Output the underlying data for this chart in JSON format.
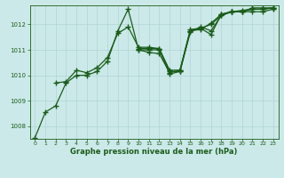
{
  "xlabel": "Graphe pression niveau de la mer (hPa)",
  "xlim": [
    -0.5,
    23.5
  ],
  "ylim": [
    1007.5,
    1012.75
  ],
  "yticks": [
    1008,
    1009,
    1010,
    1011,
    1012
  ],
  "xticks": [
    0,
    1,
    2,
    3,
    4,
    5,
    6,
    7,
    8,
    9,
    10,
    11,
    12,
    13,
    14,
    15,
    16,
    17,
    18,
    19,
    20,
    21,
    22,
    23
  ],
  "bg_color": "#cce9e9",
  "line_color": "#1a5c1a",
  "grid_color": "#b0d4d4",
  "series": [
    {
      "x": [
        0,
        1,
        2,
        3,
        4,
        5,
        6,
        7,
        8,
        9,
        10,
        11,
        12,
        13,
        14,
        15,
        16,
        17,
        18,
        19,
        20,
        21,
        22,
        23
      ],
      "y": [
        1007.55,
        1008.55,
        1008.8,
        1009.7,
        1010.0,
        1010.0,
        1010.15,
        1010.55,
        1011.75,
        1012.6,
        1011.0,
        1010.9,
        1010.85,
        1010.1,
        1010.2,
        1011.75,
        1011.85,
        1011.6,
        1012.4,
        1012.5,
        1012.5,
        1012.5,
        1012.5,
        1012.6
      ]
    },
    {
      "x": [
        2,
        3,
        4,
        5,
        6,
        7,
        8,
        9,
        10,
        11,
        12,
        13,
        14,
        15,
        16,
        17,
        18,
        19,
        20,
        21,
        22,
        23
      ],
      "y": [
        1009.7,
        1009.75,
        1010.2,
        1010.1,
        1010.3,
        1010.7,
        1011.65,
        1011.9,
        1011.1,
        1011.1,
        1011.05,
        1010.05,
        1010.15,
        1011.7,
        1011.9,
        1011.75,
        1012.35,
        1012.5,
        1012.55,
        1012.6,
        1012.6,
        1012.65
      ]
    },
    {
      "x": [
        10,
        11,
        12,
        13,
        14,
        15,
        16,
        17,
        18,
        19,
        20,
        21,
        22,
        23
      ],
      "y": [
        1011.05,
        1011.05,
        1011.05,
        1010.2,
        1010.2,
        1011.8,
        1011.85,
        1012.0,
        1012.35,
        1012.5,
        1012.5,
        1012.6,
        1012.6,
        1012.65
      ]
    },
    {
      "x": [
        10,
        11,
        12,
        13,
        14,
        15,
        16,
        17,
        18,
        19,
        20,
        21,
        22,
        23
      ],
      "y": [
        1011.0,
        1011.0,
        1011.0,
        1010.15,
        1010.15,
        1011.75,
        1011.8,
        1012.05,
        1012.4,
        1012.5,
        1012.5,
        1012.65,
        1012.65,
        1012.65
      ]
    }
  ],
  "marker": "+",
  "markersize": 4,
  "linewidth": 0.9
}
